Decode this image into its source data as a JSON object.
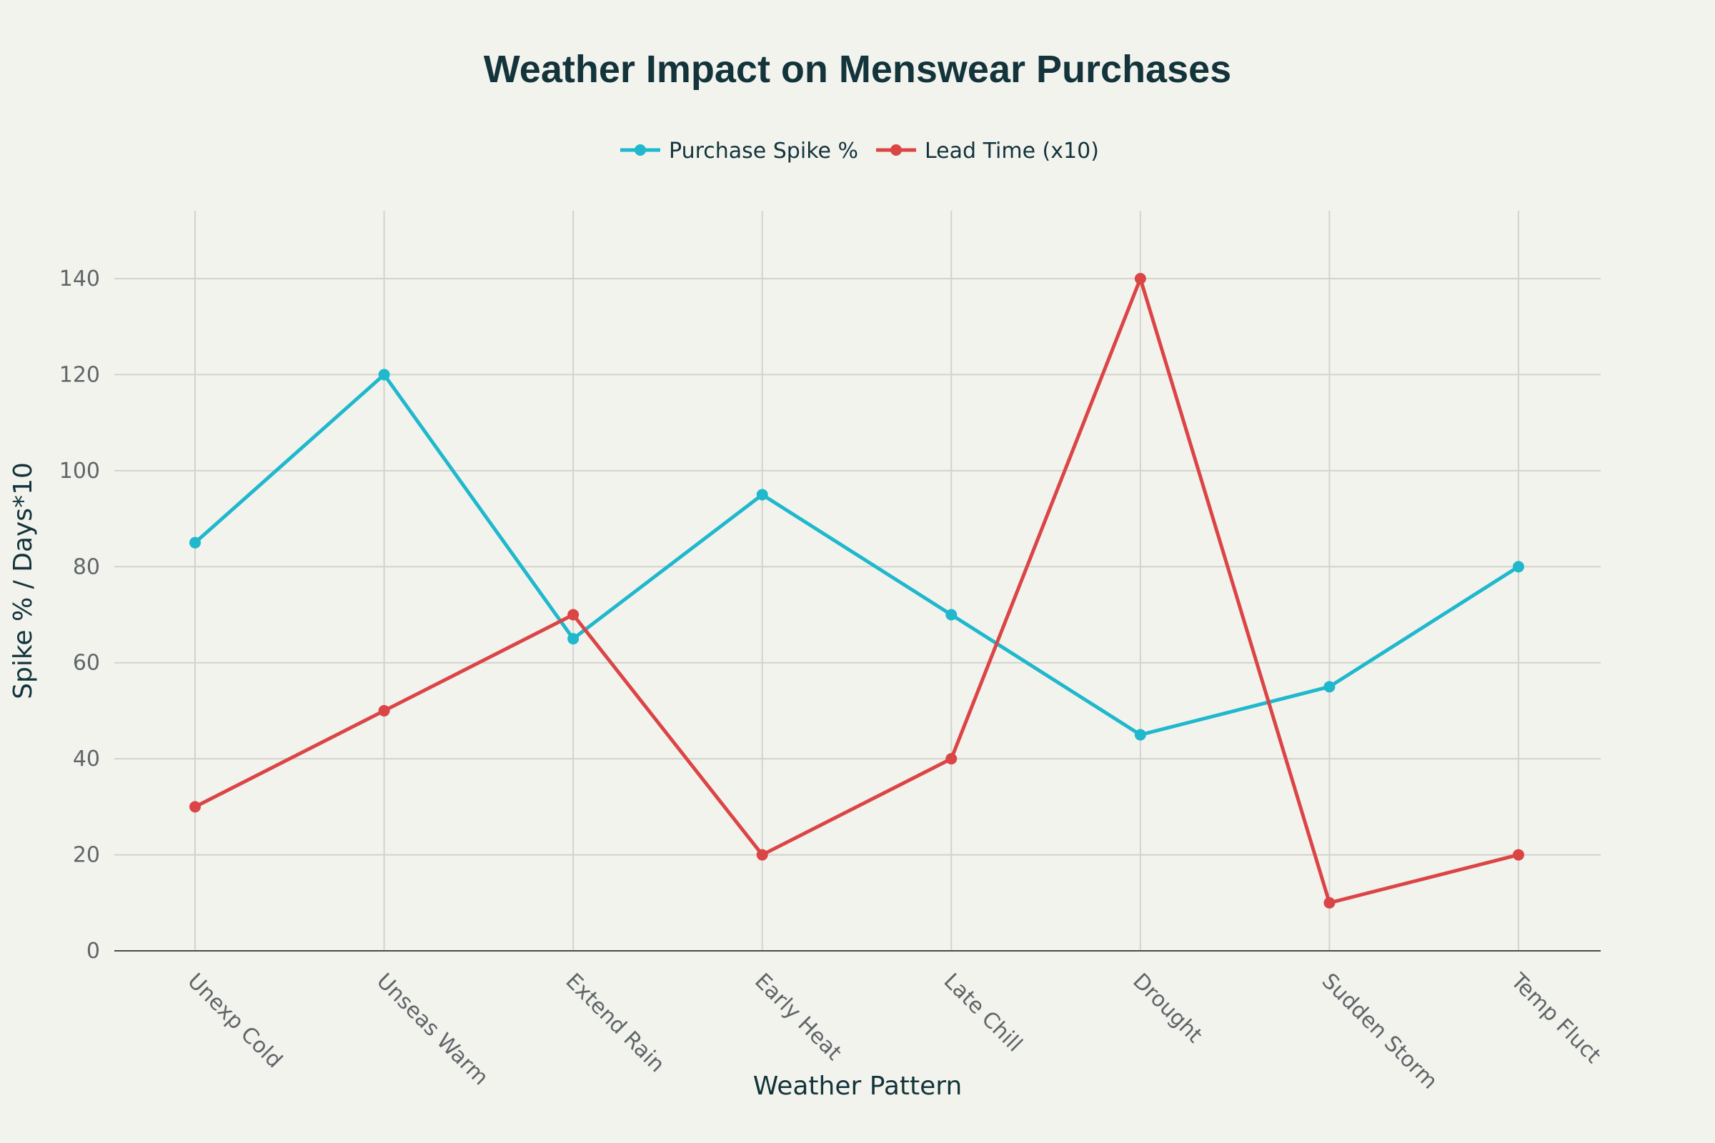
{
  "chart_data": {
    "type": "line",
    "title": "Weather Impact on Menswear Purchases",
    "xlabel": "Weather Pattern",
    "ylabel": "Spike % / Days*10",
    "categories": [
      "Unexp Cold",
      "Unseas Warm",
      "Extend Rain",
      "Early Heat",
      "Late Chill",
      "Drought",
      "Sudden Storm",
      "Temp Fluct"
    ],
    "yticks": [
      0,
      20,
      40,
      60,
      80,
      100,
      120,
      140
    ],
    "ylim": [
      0,
      150
    ],
    "grid": true,
    "legend_position": "top-center",
    "series": [
      {
        "name": "Purchase Spike %",
        "color": "#1fb8cd",
        "values": [
          85,
          120,
          65,
          95,
          70,
          45,
          55,
          80
        ]
      },
      {
        "name": "Lead Time (x10)",
        "color": "#db4545",
        "values": [
          30,
          50,
          70,
          20,
          40,
          140,
          10,
          20
        ]
      }
    ]
  }
}
